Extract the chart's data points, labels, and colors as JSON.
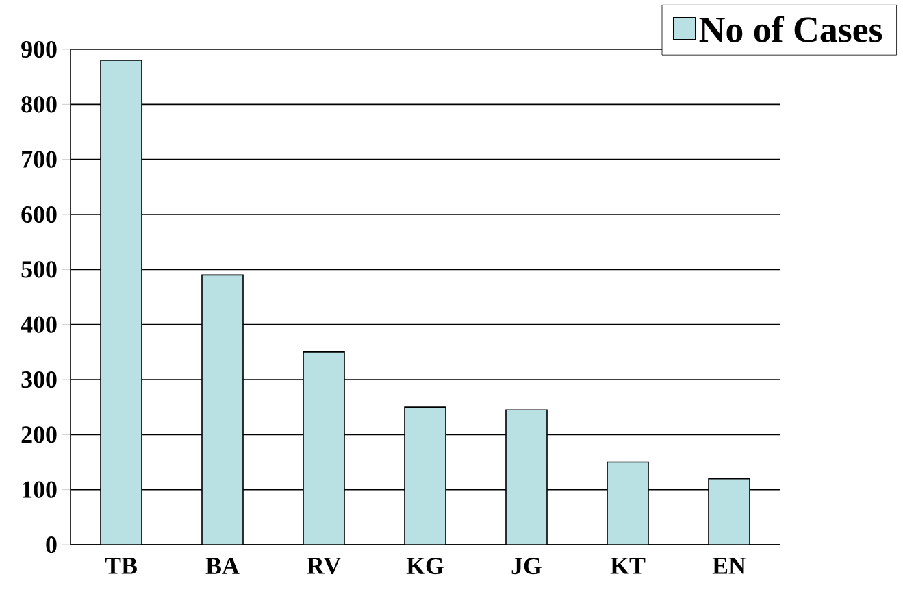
{
  "chart_data": {
    "type": "bar",
    "categories": [
      "TB",
      "BA",
      "RV",
      "KG",
      "JG",
      "KT",
      "EN"
    ],
    "series": [
      {
        "name": "No of Cases",
        "color": "#b9e0e3",
        "values": [
          880,
          490,
          350,
          250,
          245,
          150,
          120
        ]
      }
    ],
    "ylim": [
      0,
      900
    ],
    "yticks": [
      0,
      100,
      200,
      300,
      400,
      500,
      600,
      700,
      800,
      900
    ],
    "grid": "y",
    "legend": "top right"
  }
}
